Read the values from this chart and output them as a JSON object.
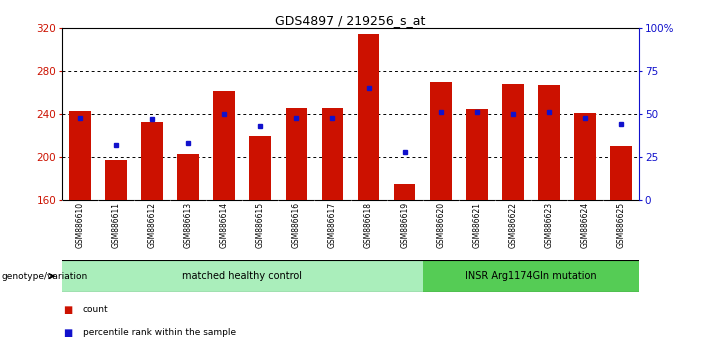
{
  "title": "GDS4897 / 219256_s_at",
  "samples": [
    "GSM886610",
    "GSM886611",
    "GSM886612",
    "GSM886613",
    "GSM886614",
    "GSM886615",
    "GSM886616",
    "GSM886617",
    "GSM886618",
    "GSM886619",
    "GSM886620",
    "GSM886621",
    "GSM886622",
    "GSM886623",
    "GSM886624",
    "GSM886625"
  ],
  "counts": [
    243,
    197,
    233,
    203,
    262,
    220,
    246,
    246,
    315,
    175,
    270,
    245,
    268,
    267,
    241,
    210
  ],
  "percentiles": [
    48,
    32,
    47,
    33,
    50,
    43,
    48,
    48,
    65,
    28,
    51,
    51,
    50,
    51,
    48,
    44
  ],
  "groups": [
    "matched healthy control",
    "matched healthy control",
    "matched healthy control",
    "matched healthy control",
    "matched healthy control",
    "matched healthy control",
    "matched healthy control",
    "matched healthy control",
    "matched healthy control",
    "matched healthy control",
    "INSR Arg1174Gln mutation",
    "INSR Arg1174Gln mutation",
    "INSR Arg1174Gln mutation",
    "INSR Arg1174Gln mutation",
    "INSR Arg1174Gln mutation",
    "INSR Arg1174Gln mutation"
  ],
  "ymin": 160,
  "ymax": 320,
  "yticks_left": [
    160,
    200,
    240,
    280,
    320
  ],
  "yticks_right": [
    0,
    25,
    50,
    75,
    100
  ],
  "bar_color": "#cc1100",
  "dot_color": "#1111cc",
  "group_colors": {
    "matched healthy control": "#aaeebb",
    "INSR Arg1174Gln mutation": "#55cc55"
  },
  "sample_bg_color": "#cccccc",
  "title_fontsize": 9,
  "legend_count": "count",
  "legend_pct": "percentile rank within the sample",
  "genotype_label": "genotype/variation"
}
